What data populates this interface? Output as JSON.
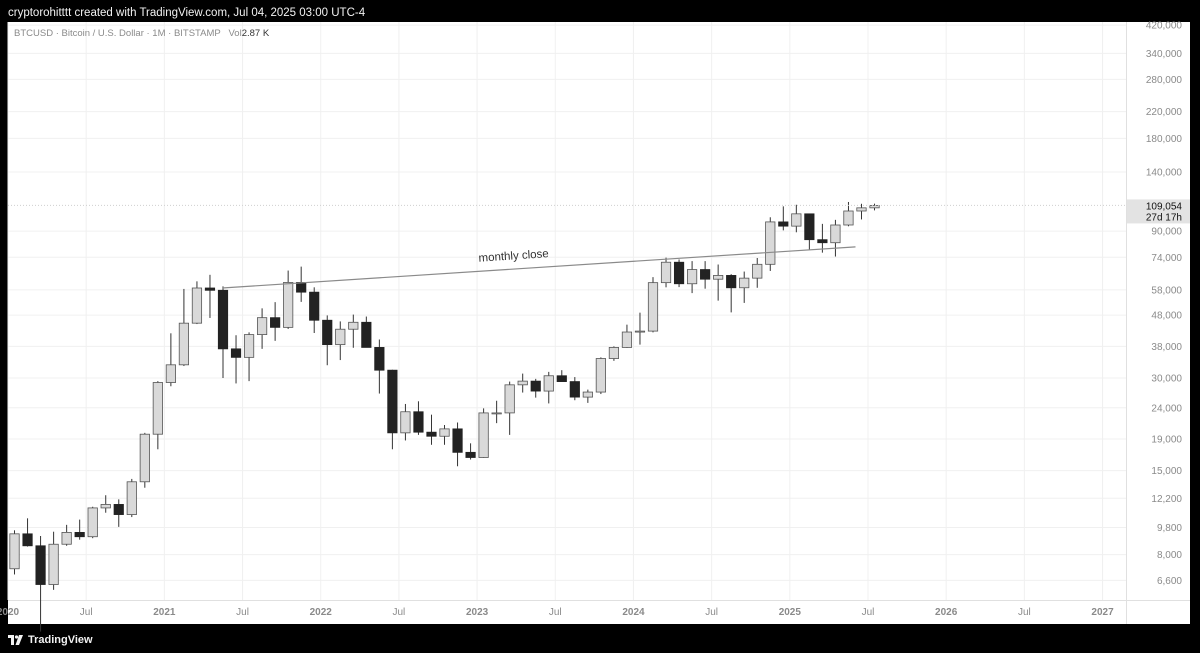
{
  "header": {
    "attribution": "cryptorohitttt created with TradingView.com, Jul 04, 2025 03:00 UTC-4"
  },
  "legend": {
    "symbol": "BTCUSD · Bitcoin / U.S. Dollar · 1M · BITSTAMP",
    "vol_label": "Vol",
    "vol_value": "2.87 K"
  },
  "footer": {
    "brand": "TradingView"
  },
  "chart_data": {
    "type": "candlestick",
    "interval": "1M",
    "y_scale": "log",
    "ylim": [
      5700,
      430000
    ],
    "y_ticks": [
      420000,
      340000,
      280000,
      220000,
      180000,
      140000,
      90000,
      74000,
      58000,
      48000,
      38000,
      30000,
      24000,
      19000,
      15000,
      12200,
      9800,
      8000,
      6600
    ],
    "y_tick_labels": [
      "420,000",
      "340,000",
      "280,000",
      "220,000",
      "180,000",
      "140,000",
      "90,000",
      "74,000",
      "58,000",
      "48,000",
      "38,000",
      "30,000",
      "24,000",
      "19,000",
      "15,000",
      "12,200",
      "9,800",
      "8,000",
      "6,600"
    ],
    "x_ticks": [
      {
        "t": 2020.0,
        "label": "2020",
        "bold": true
      },
      {
        "t": 2020.5,
        "label": "Jul",
        "bold": false
      },
      {
        "t": 2021.0,
        "label": "2021",
        "bold": true
      },
      {
        "t": 2021.5,
        "label": "Jul",
        "bold": false
      },
      {
        "t": 2022.0,
        "label": "2022",
        "bold": true
      },
      {
        "t": 2022.5,
        "label": "Jul",
        "bold": false
      },
      {
        "t": 2023.0,
        "label": "2023",
        "bold": true
      },
      {
        "t": 2023.5,
        "label": "Jul",
        "bold": false
      },
      {
        "t": 2024.0,
        "label": "2024",
        "bold": true
      },
      {
        "t": 2024.5,
        "label": "Jul",
        "bold": false
      },
      {
        "t": 2025.0,
        "label": "2025",
        "bold": true
      },
      {
        "t": 2025.5,
        "label": "Jul",
        "bold": false
      },
      {
        "t": 2026.0,
        "label": "2026",
        "bold": true
      },
      {
        "t": 2026.5,
        "label": "Jul",
        "bold": false
      },
      {
        "t": 2027.0,
        "label": "2027",
        "bold": true
      }
    ],
    "xlim": [
      2020.0,
      2027.15
    ],
    "first_month": "2020-01",
    "candles": [
      {
        "o": 7200,
        "h": 9600,
        "l": 6900,
        "c": 9350
      },
      {
        "o": 9350,
        "h": 10500,
        "l": 8500,
        "c": 8550
      },
      {
        "o": 8550,
        "h": 9200,
        "l": 4500,
        "c": 6400
      },
      {
        "o": 6400,
        "h": 9500,
        "l": 6150,
        "c": 8650
      },
      {
        "o": 8650,
        "h": 10000,
        "l": 8550,
        "c": 9450
      },
      {
        "o": 9450,
        "h": 10400,
        "l": 8950,
        "c": 9150
      },
      {
        "o": 9150,
        "h": 11450,
        "l": 9050,
        "c": 11350
      },
      {
        "o": 11350,
        "h": 12480,
        "l": 10950,
        "c": 11650
      },
      {
        "o": 11650,
        "h": 12100,
        "l": 9850,
        "c": 10800
      },
      {
        "o": 10800,
        "h": 14100,
        "l": 10600,
        "c": 13800
      },
      {
        "o": 13800,
        "h": 19900,
        "l": 13200,
        "c": 19700
      },
      {
        "o": 19700,
        "h": 29300,
        "l": 17600,
        "c": 29000
      },
      {
        "o": 29000,
        "h": 41900,
        "l": 28200,
        "c": 33100
      },
      {
        "o": 33100,
        "h": 58400,
        "l": 32800,
        "c": 45200
      },
      {
        "o": 45200,
        "h": 61800,
        "l": 44900,
        "c": 58800
      },
      {
        "o": 58800,
        "h": 64900,
        "l": 47000,
        "c": 57800
      },
      {
        "o": 57800,
        "h": 59500,
        "l": 30000,
        "c": 37300
      },
      {
        "o": 37300,
        "h": 41300,
        "l": 28800,
        "c": 35000
      },
      {
        "o": 35000,
        "h": 42200,
        "l": 29300,
        "c": 41500
      },
      {
        "o": 41500,
        "h": 50500,
        "l": 37300,
        "c": 47100
      },
      {
        "o": 47100,
        "h": 52900,
        "l": 39600,
        "c": 43800
      },
      {
        "o": 43800,
        "h": 67000,
        "l": 43300,
        "c": 61300
      },
      {
        "o": 61300,
        "h": 69000,
        "l": 53000,
        "c": 57000
      },
      {
        "o": 57000,
        "h": 59100,
        "l": 42000,
        "c": 46200
      },
      {
        "o": 46200,
        "h": 47900,
        "l": 33000,
        "c": 38500
      },
      {
        "o": 38500,
        "h": 45800,
        "l": 34300,
        "c": 43200
      },
      {
        "o": 43200,
        "h": 48200,
        "l": 37600,
        "c": 45500
      },
      {
        "o": 45500,
        "h": 47500,
        "l": 37700,
        "c": 37700
      },
      {
        "o": 37700,
        "h": 40000,
        "l": 26700,
        "c": 31800
      },
      {
        "o": 31800,
        "h": 31900,
        "l": 17600,
        "c": 19900
      },
      {
        "o": 19900,
        "h": 24700,
        "l": 18800,
        "c": 23300
      },
      {
        "o": 23300,
        "h": 25200,
        "l": 19600,
        "c": 20000
      },
      {
        "o": 20000,
        "h": 22800,
        "l": 18200,
        "c": 19400
      },
      {
        "o": 19400,
        "h": 21100,
        "l": 18200,
        "c": 20500
      },
      {
        "o": 20500,
        "h": 21500,
        "l": 15500,
        "c": 17200
      },
      {
        "o": 17200,
        "h": 18400,
        "l": 16300,
        "c": 16550
      },
      {
        "o": 16550,
        "h": 23900,
        "l": 16500,
        "c": 23100
      },
      {
        "o": 23100,
        "h": 25300,
        "l": 21400,
        "c": 23100
      },
      {
        "o": 23100,
        "h": 29200,
        "l": 19600,
        "c": 28500
      },
      {
        "o": 28500,
        "h": 31000,
        "l": 26900,
        "c": 29300
      },
      {
        "o": 29300,
        "h": 29800,
        "l": 25900,
        "c": 27200
      },
      {
        "o": 27200,
        "h": 31400,
        "l": 24800,
        "c": 30500
      },
      {
        "o": 30500,
        "h": 31800,
        "l": 29500,
        "c": 29200
      },
      {
        "o": 29200,
        "h": 30200,
        "l": 25400,
        "c": 26000
      },
      {
        "o": 26000,
        "h": 27500,
        "l": 24900,
        "c": 27000
      },
      {
        "o": 27000,
        "h": 35000,
        "l": 26600,
        "c": 34700
      },
      {
        "o": 34700,
        "h": 38000,
        "l": 34100,
        "c": 37700
      },
      {
        "o": 37700,
        "h": 44700,
        "l": 37600,
        "c": 42300
      },
      {
        "o": 42300,
        "h": 48900,
        "l": 38500,
        "c": 42600
      },
      {
        "o": 42600,
        "h": 63800,
        "l": 42200,
        "c": 61200
      },
      {
        "o": 61200,
        "h": 73800,
        "l": 59100,
        "c": 71300
      },
      {
        "o": 71300,
        "h": 72800,
        "l": 59200,
        "c": 60700
      },
      {
        "o": 60700,
        "h": 71900,
        "l": 56600,
        "c": 67500
      },
      {
        "o": 67500,
        "h": 71900,
        "l": 58500,
        "c": 62800
      },
      {
        "o": 62800,
        "h": 70100,
        "l": 53500,
        "c": 64600
      },
      {
        "o": 64600,
        "h": 65200,
        "l": 49000,
        "c": 58900
      },
      {
        "o": 58900,
        "h": 66500,
        "l": 52600,
        "c": 63300
      },
      {
        "o": 63300,
        "h": 73600,
        "l": 58900,
        "c": 70200
      },
      {
        "o": 70200,
        "h": 99800,
        "l": 66800,
        "c": 96400
      },
      {
        "o": 96400,
        "h": 108300,
        "l": 90500,
        "c": 93400
      },
      {
        "o": 93400,
        "h": 109600,
        "l": 89200,
        "c": 102400
      },
      {
        "o": 102400,
        "h": 102500,
        "l": 78200,
        "c": 84400
      },
      {
        "o": 84400,
        "h": 95000,
        "l": 76600,
        "c": 82500
      },
      {
        "o": 82500,
        "h": 97900,
        "l": 74400,
        "c": 94200
      },
      {
        "o": 94200,
        "h": 111900,
        "l": 93300,
        "c": 104600
      },
      {
        "o": 104600,
        "h": 110400,
        "l": 98200,
        "c": 107100
      },
      {
        "o": 107100,
        "h": 110500,
        "l": 105100,
        "c": 109054
      }
    ],
    "trendline": {
      "label": "monthly close",
      "start": {
        "t": 2021.37,
        "price": 58800
      },
      "end": {
        "t": 2025.42,
        "price": 80000
      }
    },
    "last_price": {
      "value": 109054,
      "label": "109,054",
      "countdown": "27d 17h"
    }
  }
}
